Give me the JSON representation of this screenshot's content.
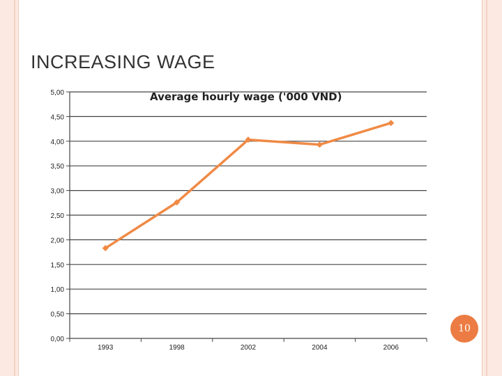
{
  "slide": {
    "title": "INCREASING WAGE",
    "page_number": "10"
  },
  "colors": {
    "series": "#f08a45",
    "frame": "#fbe9e2",
    "badge": "#ec7c43"
  },
  "chart_data": {
    "type": "line",
    "title": "Average hourly wage ('000 VND)",
    "xlabel": "",
    "ylabel": "",
    "categories": [
      "1993",
      "1998",
      "2002",
      "2004",
      "2006"
    ],
    "series": [
      {
        "values": [
          1.83,
          2.76,
          4.03,
          3.93,
          4.37
        ]
      }
    ],
    "ylim": [
      0,
      5
    ],
    "yticks": [
      "0,00",
      "0,50",
      "1,00",
      "1,50",
      "2,00",
      "2,50",
      "3,00",
      "3,50",
      "4,00",
      "4,50",
      "5,00"
    ],
    "grid": true,
    "legend": "none"
  }
}
